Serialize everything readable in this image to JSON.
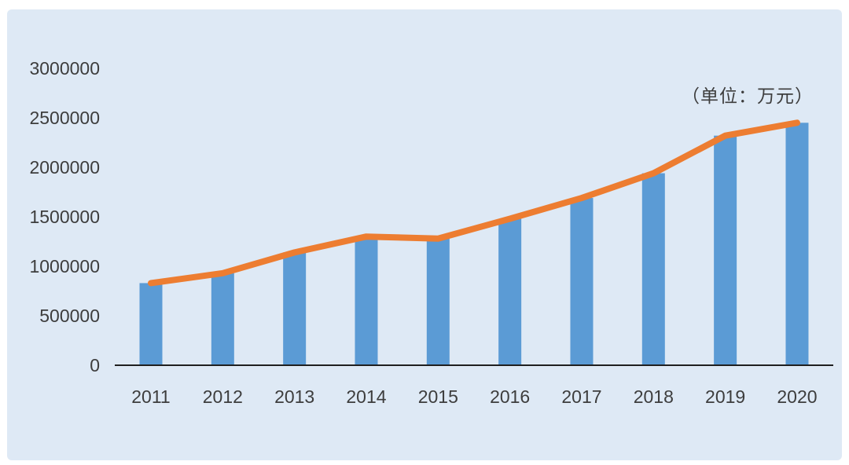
{
  "page": {
    "background": "#ffffff"
  },
  "panel": {
    "background": "#dee9f5"
  },
  "chart_data": {
    "type": "bar",
    "subtype": "bar-with-line-overlay",
    "title": "",
    "unit_annotation": "（单位：万元）",
    "categories": [
      "2011",
      "2012",
      "2013",
      "2014",
      "2015",
      "2016",
      "2017",
      "2018",
      "2019",
      "2020"
    ],
    "series": [
      {
        "name": "column-series",
        "type": "bar",
        "color": "#5b9bd5",
        "values": [
          830000,
          930000,
          1140000,
          1300000,
          1280000,
          1480000,
          1690000,
          1940000,
          2320000,
          2450000
        ]
      },
      {
        "name": "line-series",
        "type": "line",
        "color": "#ed7d31",
        "values": [
          830000,
          930000,
          1140000,
          1300000,
          1280000,
          1480000,
          1690000,
          1940000,
          2320000,
          2450000
        ]
      }
    ],
    "xlabel": "",
    "ylabel": "",
    "ylim": [
      0,
      3000000
    ],
    "yticks": [
      0,
      500000,
      1000000,
      1500000,
      2000000,
      2500000,
      3000000
    ],
    "ytick_labels": [
      "0",
      "500000",
      "1000000",
      "1500000",
      "2000000",
      "2500000",
      "3000000"
    ],
    "grid": false,
    "legend": "none",
    "text_color": "#3d3d3d",
    "axis_color": "#1f1f1f"
  }
}
